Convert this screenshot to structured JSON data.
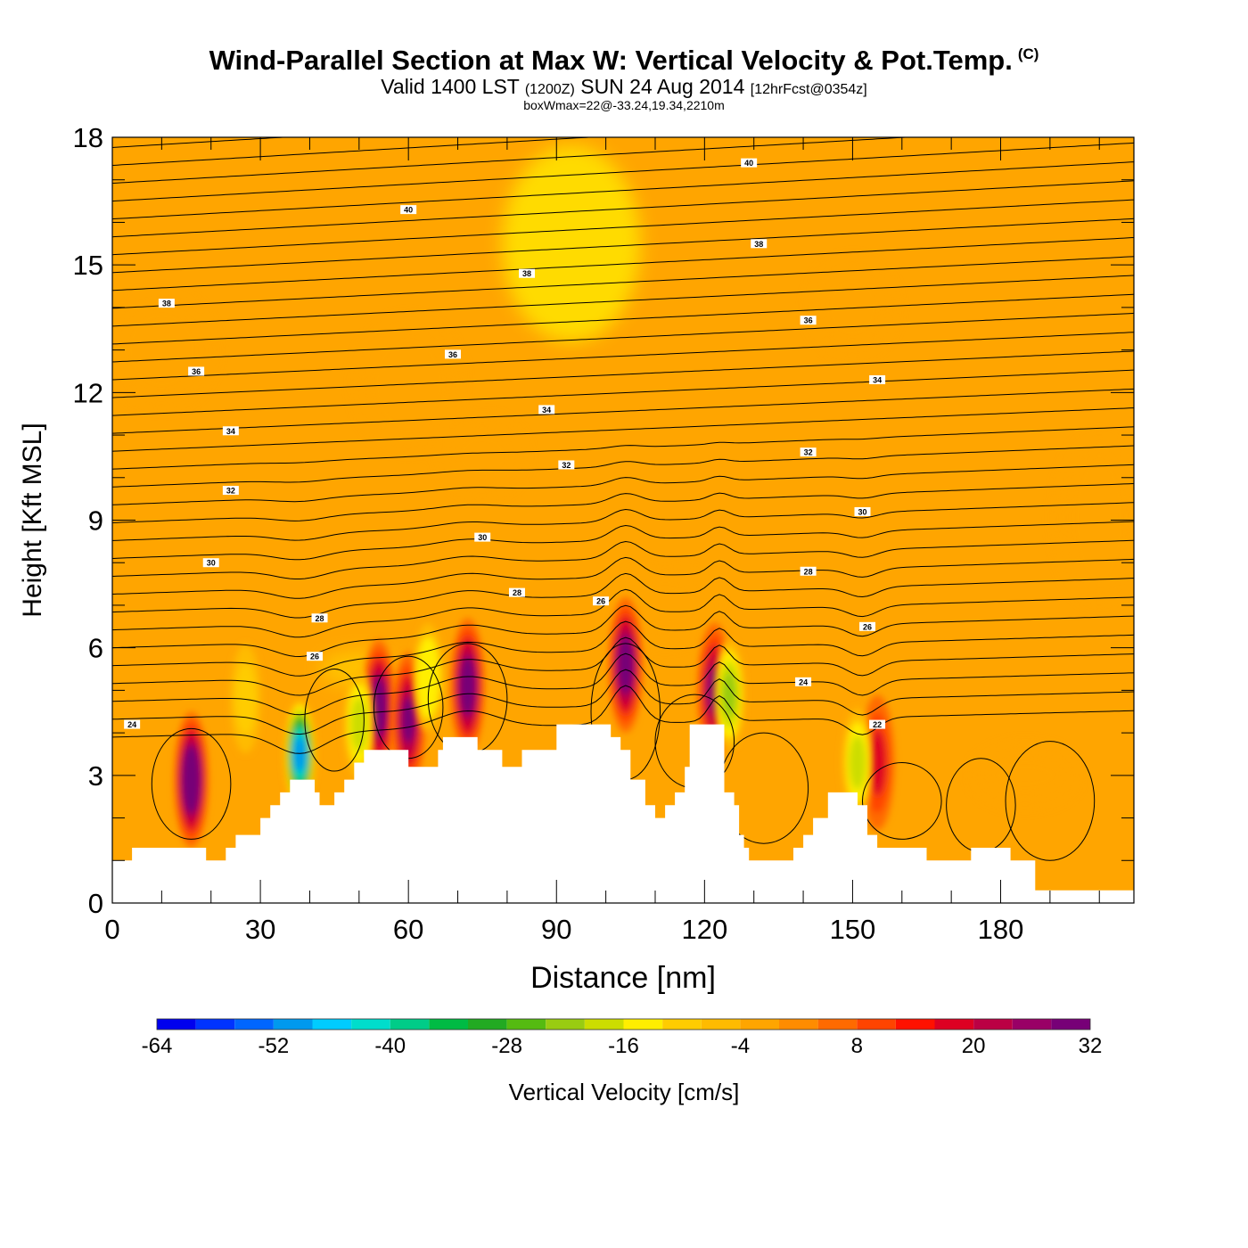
{
  "header": {
    "title": "Wind-Parallel Section at Max W: Vertical Velocity & Pot.Temp.",
    "copyright": "(C)",
    "subtitle_main_1": "Valid 1400 LST",
    "subtitle_small_1": "(1200Z)",
    "subtitle_main_2": "SUN 24 Aug 2014",
    "subtitle_small_2": "[12hrFcst@0354z]",
    "note": "boxWmax=22@-33.24,19.34,2210m"
  },
  "chart_data": {
    "type": "heatmap",
    "xlabel": "Distance [nm]",
    "ylabel": "Height [Kft MSL]",
    "xlim": [
      0,
      207
    ],
    "ylim": [
      0,
      18
    ],
    "x_ticks": [
      0,
      30,
      60,
      90,
      120,
      150,
      180
    ],
    "y_ticks": [
      0,
      3,
      6,
      9,
      12,
      15,
      18
    ],
    "field": "Vertical Velocity [cm/s]",
    "background_value": -2,
    "terrain_kft": [
      [
        0,
        1.0
      ],
      [
        4,
        1.0
      ],
      [
        4,
        1.3
      ],
      [
        19,
        1.3
      ],
      [
        19,
        1.0
      ],
      [
        23,
        1.0
      ],
      [
        23,
        1.3
      ],
      [
        25,
        1.3
      ],
      [
        25,
        1.6
      ],
      [
        30,
        1.6
      ],
      [
        30,
        2.0
      ],
      [
        32,
        2.0
      ],
      [
        32,
        2.3
      ],
      [
        34,
        2.3
      ],
      [
        34,
        2.6
      ],
      [
        36,
        2.6
      ],
      [
        36,
        2.9
      ],
      [
        41,
        2.9
      ],
      [
        41,
        2.6
      ],
      [
        42,
        2.6
      ],
      [
        42,
        2.3
      ],
      [
        45,
        2.3
      ],
      [
        45,
        2.6
      ],
      [
        47,
        2.6
      ],
      [
        47,
        2.9
      ],
      [
        49,
        2.9
      ],
      [
        49,
        3.3
      ],
      [
        51,
        3.3
      ],
      [
        51,
        3.6
      ],
      [
        60,
        3.6
      ],
      [
        60,
        3.2
      ],
      [
        66,
        3.2
      ],
      [
        66,
        3.6
      ],
      [
        67,
        3.6
      ],
      [
        67,
        3.9
      ],
      [
        74,
        3.9
      ],
      [
        74,
        3.6
      ],
      [
        79,
        3.6
      ],
      [
        79,
        3.2
      ],
      [
        83,
        3.2
      ],
      [
        83,
        3.6
      ],
      [
        90,
        3.6
      ],
      [
        90,
        4.2
      ],
      [
        101,
        4.2
      ],
      [
        101,
        3.9
      ],
      [
        103,
        3.9
      ],
      [
        103,
        3.6
      ],
      [
        105,
        3.6
      ],
      [
        105,
        2.9
      ],
      [
        108,
        2.9
      ],
      [
        108,
        2.3
      ],
      [
        110,
        2.3
      ],
      [
        110,
        2.0
      ],
      [
        112,
        2.0
      ],
      [
        112,
        2.3
      ],
      [
        114,
        2.3
      ],
      [
        114,
        2.6
      ],
      [
        116,
        2.6
      ],
      [
        116,
        3.2
      ],
      [
        117,
        3.2
      ],
      [
        117,
        4.2
      ],
      [
        124,
        4.2
      ],
      [
        124,
        2.6
      ],
      [
        126,
        2.6
      ],
      [
        126,
        2.3
      ],
      [
        127,
        2.3
      ],
      [
        127,
        1.6
      ],
      [
        128,
        1.6
      ],
      [
        128,
        1.3
      ],
      [
        129,
        1.3
      ],
      [
        129,
        1.0
      ],
      [
        138,
        1.0
      ],
      [
        138,
        1.3
      ],
      [
        140,
        1.3
      ],
      [
        140,
        1.6
      ],
      [
        142,
        1.6
      ],
      [
        142,
        2.0
      ],
      [
        145,
        2.0
      ],
      [
        145,
        2.6
      ],
      [
        151,
        2.6
      ],
      [
        151,
        2.3
      ],
      [
        153,
        2.3
      ],
      [
        153,
        1.6
      ],
      [
        155,
        1.6
      ],
      [
        155,
        1.3
      ],
      [
        165,
        1.3
      ],
      [
        165,
        1.0
      ],
      [
        174,
        1.0
      ],
      [
        174,
        1.3
      ],
      [
        182,
        1.3
      ],
      [
        182,
        1.0
      ],
      [
        187,
        1.0
      ],
      [
        187,
        0.3
      ],
      [
        207,
        0.3
      ]
    ],
    "updrafts": [
      {
        "x": 16,
        "y": 2.9,
        "w": 36
      },
      {
        "x": 54,
        "y": 4.6,
        "w": 30
      },
      {
        "x": 60,
        "y": 4.3,
        "w": 28
      },
      {
        "x": 72,
        "y": 5.1,
        "w": 34
      },
      {
        "x": 104,
        "y": 5.6,
        "w": 34
      },
      {
        "x": 122,
        "y": 5.0,
        "w": 28
      },
      {
        "x": 155,
        "y": 3.3,
        "w": 16
      }
    ],
    "downdrafts": [
      {
        "x": 38,
        "y": 3.5,
        "w": -52
      },
      {
        "x": 27,
        "y": 4.8,
        "w": -12
      },
      {
        "x": 50,
        "y": 4.2,
        "w": -20
      },
      {
        "x": 64,
        "y": 5.3,
        "w": -16
      },
      {
        "x": 125,
        "y": 4.9,
        "w": -22
      },
      {
        "x": 151,
        "y": 3.3,
        "w": -18
      }
    ],
    "contour_labels": [
      {
        "x": 60,
        "y": 16.3,
        "text": "40"
      },
      {
        "x": 129,
        "y": 17.4,
        "text": "40"
      },
      {
        "x": 11,
        "y": 14.1,
        "text": "38"
      },
      {
        "x": 84,
        "y": 14.8,
        "text": "38"
      },
      {
        "x": 131,
        "y": 15.5,
        "text": "38"
      },
      {
        "x": 17,
        "y": 12.5,
        "text": "36"
      },
      {
        "x": 69,
        "y": 12.9,
        "text": "36"
      },
      {
        "x": 141,
        "y": 13.7,
        "text": "36"
      },
      {
        "x": 24,
        "y": 11.1,
        "text": "34"
      },
      {
        "x": 88,
        "y": 11.6,
        "text": "34"
      },
      {
        "x": 155,
        "y": 12.3,
        "text": "34"
      },
      {
        "x": 24,
        "y": 9.7,
        "text": "32"
      },
      {
        "x": 92,
        "y": 10.3,
        "text": "32"
      },
      {
        "x": 141,
        "y": 10.6,
        "text": "32"
      },
      {
        "x": 20,
        "y": 8.0,
        "text": "30"
      },
      {
        "x": 75,
        "y": 8.6,
        "text": "30"
      },
      {
        "x": 152,
        "y": 9.2,
        "text": "30"
      },
      {
        "x": 82,
        "y": 7.3,
        "text": "28"
      },
      {
        "x": 141,
        "y": 7.8,
        "text": "28"
      },
      {
        "x": 42,
        "y": 6.7,
        "text": "28"
      },
      {
        "x": 99,
        "y": 7.1,
        "text": "26"
      },
      {
        "x": 41,
        "y": 5.8,
        "text": "26"
      },
      {
        "x": 153,
        "y": 6.5,
        "text": "26"
      },
      {
        "x": 4,
        "y": 4.2,
        "text": "24"
      },
      {
        "x": 140,
        "y": 5.2,
        "text": "24"
      },
      {
        "x": 155,
        "y": 4.2,
        "text": "22"
      }
    ]
  },
  "colorbar": {
    "title": "Vertical Velocity [cm/s]",
    "tick_labels": [
      "-64",
      "-52",
      "-40",
      "-28",
      "-16",
      "-4",
      "8",
      "20",
      "32"
    ],
    "colors": [
      "#0000ee",
      "#0033ff",
      "#0066ff",
      "#0099ee",
      "#00ccff",
      "#00ddcc",
      "#00cc88",
      "#00bb44",
      "#22aa22",
      "#55bb11",
      "#99cc11",
      "#ccdd00",
      "#ffee00",
      "#ffcc00",
      "#ffbb00",
      "#ffa500",
      "#ff8c00",
      "#ff6a00",
      "#ff4400",
      "#ff1100",
      "#dd0022",
      "#bb0044",
      "#990066",
      "#770077"
    ]
  }
}
